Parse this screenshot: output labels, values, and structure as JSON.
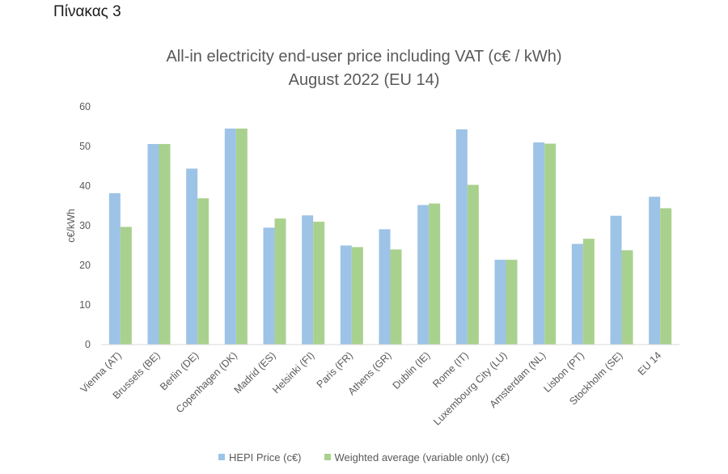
{
  "caption": "Πίνακας 3",
  "chart_data": {
    "type": "bar",
    "title_line1": "All-in electricity end-user price including VAT (c€ / kWh)",
    "title_line2": "August 2022 (EU 14)",
    "ylabel": "c€/kWh",
    "xlabel": "",
    "ylim": [
      0,
      60
    ],
    "yticks": [
      0,
      10,
      20,
      30,
      40,
      50,
      60
    ],
    "grid": false,
    "legend_position": "bottom",
    "categories": [
      "Vienna (AT)",
      "Brussels (BE)",
      "Berlin (DE)",
      "Copenhagen (DK)",
      "Madrid (ES)",
      "Helsinki (FI)",
      "Paris (FR)",
      "Athens (GR)",
      "Dublin (IE)",
      "Rome (IT)",
      "Luxembourg City (LU)",
      "Amsterdam (NL)",
      "Lisbon (PT)",
      "Stockholm (SE)",
      "EU 14"
    ],
    "series": [
      {
        "name": "HEPI Price (c€)",
        "color": "#9dc3e6",
        "values": [
          38.2,
          50.6,
          44.4,
          54.5,
          29.5,
          32.6,
          25.0,
          29.1,
          35.2,
          54.3,
          21.4,
          51.0,
          25.4,
          32.5,
          37.3
        ]
      },
      {
        "name": "Weighted average (variable only) (c€)",
        "color": "#a9d18e",
        "values": [
          29.7,
          50.6,
          36.9,
          54.5,
          31.8,
          31.0,
          24.6,
          24.0,
          35.6,
          40.3,
          21.4,
          50.7,
          26.7,
          23.8,
          34.4
        ]
      }
    ]
  }
}
